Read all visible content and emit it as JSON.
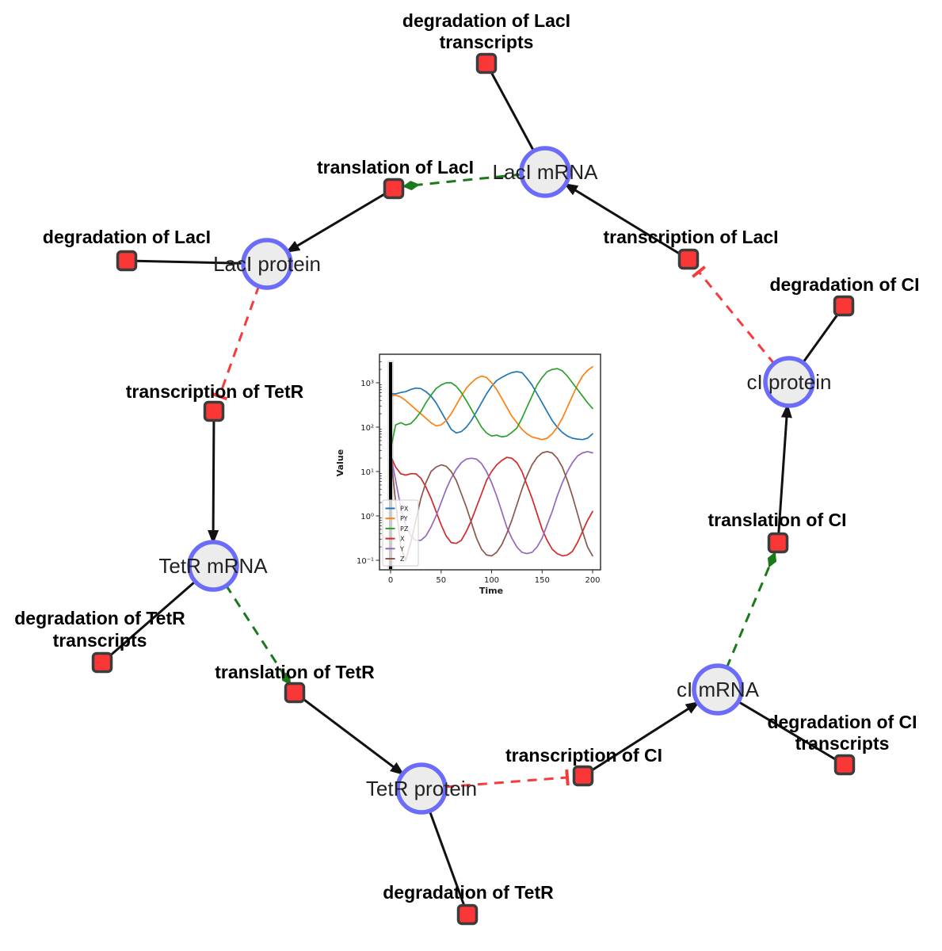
{
  "diagram": {
    "species": [
      {
        "id": "laci-mrna",
        "label": "LacI mRNA"
      },
      {
        "id": "laci-protein",
        "label": "LacI protein"
      },
      {
        "id": "tetr-mrna",
        "label": "TetR mRNA"
      },
      {
        "id": "tetr-protein",
        "label": "TetR protein"
      },
      {
        "id": "ci-mrna",
        "label": "cI mRNA"
      },
      {
        "id": "ci-protein",
        "label": "cI protein"
      }
    ],
    "reactions": [
      {
        "id": "deg-laci-transcripts",
        "label_lines": [
          "degradation of LacI",
          "transcripts"
        ]
      },
      {
        "id": "translation-laci",
        "label": "translation of LacI"
      },
      {
        "id": "deg-laci",
        "label": "degradation of LacI"
      },
      {
        "id": "transcription-laci",
        "label": "transcription of LacI"
      },
      {
        "id": "deg-ci",
        "label": "degradation of CI"
      },
      {
        "id": "transcription-tetr",
        "label": "transcription of TetR"
      },
      {
        "id": "deg-tetr-transcripts",
        "label_lines": [
          "degradation of TetR",
          "transcripts"
        ]
      },
      {
        "id": "translation-tetr",
        "label": "translation of TetR"
      },
      {
        "id": "deg-tetr",
        "label": "degradation of TetR"
      },
      {
        "id": "transcription-ci",
        "label": "transcription of CI"
      },
      {
        "id": "deg-ci-transcripts",
        "label_lines": [
          "degradation of CI",
          "transcripts"
        ]
      },
      {
        "id": "translation-ci",
        "label": "translation of CI"
      }
    ],
    "edges": [
      {
        "source": "LacI mRNA",
        "target": "degradation of LacI transcripts",
        "type": "reactant"
      },
      {
        "source": "transcription of LacI",
        "target": "LacI mRNA",
        "type": "product"
      },
      {
        "source": "LacI mRNA",
        "target": "translation of LacI",
        "type": "modifier"
      },
      {
        "source": "translation of LacI",
        "target": "LacI protein",
        "type": "product"
      },
      {
        "source": "LacI protein",
        "target": "degradation of LacI",
        "type": "reactant"
      },
      {
        "source": "LacI protein",
        "target": "transcription of TetR",
        "type": "inhibition"
      },
      {
        "source": "transcription of TetR",
        "target": "TetR mRNA",
        "type": "product"
      },
      {
        "source": "TetR mRNA",
        "target": "degradation of TetR transcripts",
        "type": "reactant"
      },
      {
        "source": "TetR mRNA",
        "target": "translation of TetR",
        "type": "modifier"
      },
      {
        "source": "translation of TetR",
        "target": "TetR protein",
        "type": "product"
      },
      {
        "source": "TetR protein",
        "target": "degradation of TetR",
        "type": "reactant"
      },
      {
        "source": "TetR protein",
        "target": "transcription of CI",
        "type": "inhibition"
      },
      {
        "source": "transcription of CI",
        "target": "cI mRNA",
        "type": "product"
      },
      {
        "source": "cI mRNA",
        "target": "degradation of CI transcripts",
        "type": "reactant"
      },
      {
        "source": "cI mRNA",
        "target": "translation of CI",
        "type": "modifier"
      },
      {
        "source": "translation of CI",
        "target": "cI protein",
        "type": "product"
      },
      {
        "source": "cI protein",
        "target": "degradation of CI",
        "type": "reactant"
      },
      {
        "source": "cI protein",
        "target": "transcription of LacI",
        "type": "inhibition"
      }
    ],
    "colors": {
      "species_fill": "#ececec",
      "species_stroke": "#6c6cfa",
      "reaction_fill": "#fa3737",
      "reaction_stroke": "#3c3c3c",
      "product_edge": "#111111",
      "modifier_edge": "#1a7a1a",
      "inhibition_edge": "#f53b3b"
    }
  },
  "chart_data": {
    "type": "line",
    "xlabel": "Time",
    "ylabel": "Value",
    "y_scale": "log",
    "xlim": [
      0,
      200
    ],
    "ylim_log10": [
      -1.2,
      3.7
    ],
    "x_ticks": [
      0,
      50,
      100,
      150,
      200
    ],
    "x_tick_labels": [
      "0",
      "50",
      "100",
      "150",
      "200"
    ],
    "y_tick_exponents": [
      -1,
      0,
      1,
      2,
      3
    ],
    "y_tick_labels": [
      "10⁻¹",
      "10⁰",
      "10¹",
      "10²",
      "10³"
    ],
    "legend_position": "lower left",
    "vline_x": 0,
    "x_step": 5,
    "series": [
      {
        "name": "PX",
        "color": "#1f77b4",
        "log10_values": [
          2.75,
          2.75,
          2.78,
          2.8,
          2.85,
          2.88,
          2.87,
          2.8,
          2.7,
          2.55,
          2.35,
          2.15,
          1.95,
          1.87,
          1.9,
          2.0,
          2.15,
          2.35,
          2.55,
          2.75,
          2.92,
          3.05,
          3.12,
          3.18,
          3.23,
          3.25,
          3.23,
          3.1,
          2.95,
          2.75,
          2.55,
          2.35,
          2.15,
          2.0,
          1.88,
          1.8,
          1.75,
          1.73,
          1.72,
          1.75,
          1.85
        ]
      },
      {
        "name": "PY",
        "color": "#ff7f0e",
        "log10_values": [
          2.7,
          2.72,
          2.68,
          2.6,
          2.5,
          2.4,
          2.3,
          2.2,
          2.1,
          2.03,
          2.05,
          2.15,
          2.3,
          2.5,
          2.7,
          2.88,
          3.0,
          3.1,
          3.15,
          3.12,
          3.0,
          2.85,
          2.65,
          2.45,
          2.25,
          2.1,
          1.95,
          1.85,
          1.78,
          1.75,
          1.72,
          1.75,
          1.85,
          2.0,
          2.2,
          2.45,
          2.7,
          2.95,
          3.15,
          3.28,
          3.36
        ]
      },
      {
        "name": "PZ",
        "color": "#2ca02c",
        "log10_values": [
          1.5,
          2.05,
          2.1,
          2.05,
          2.08,
          2.2,
          2.35,
          2.55,
          2.72,
          2.87,
          2.95,
          3.0,
          3.0,
          2.92,
          2.78,
          2.6,
          2.4,
          2.2,
          2.0,
          1.87,
          1.8,
          1.82,
          1.78,
          1.8,
          1.88,
          1.98,
          2.2,
          2.45,
          2.7,
          2.95,
          3.12,
          3.25,
          3.3,
          3.32,
          3.27,
          3.15,
          3.0,
          2.85,
          2.7,
          2.55,
          2.42
        ]
      },
      {
        "name": "X",
        "color": "#d62728",
        "log10_values": [
          1.35,
          1.1,
          0.95,
          0.92,
          0.95,
          0.95,
          0.85,
          0.65,
          0.4,
          0.1,
          -0.2,
          -0.45,
          -0.6,
          -0.62,
          -0.55,
          -0.35,
          -0.1,
          0.2,
          0.5,
          0.8,
          1.0,
          1.15,
          1.25,
          1.32,
          1.3,
          1.2,
          1.0,
          0.7,
          0.4,
          0.05,
          -0.3,
          -0.55,
          -0.75,
          -0.85,
          -0.9,
          -0.88,
          -0.8,
          -0.6,
          -0.35,
          -0.1,
          0.1
        ]
      },
      {
        "name": "Y",
        "color": "#9467bd",
        "log10_values": [
          1.4,
          0.8,
          0.2,
          -0.2,
          -0.45,
          -0.55,
          -0.55,
          -0.45,
          -0.25,
          0.0,
          0.3,
          0.6,
          0.85,
          1.05,
          1.2,
          1.28,
          1.3,
          1.28,
          1.18,
          1.0,
          0.75,
          0.45,
          0.1,
          -0.25,
          -0.5,
          -0.7,
          -0.82,
          -0.85,
          -0.82,
          -0.7,
          -0.5,
          -0.2,
          0.1,
          0.45,
          0.75,
          1.0,
          1.2,
          1.35,
          1.42,
          1.45,
          1.42
        ]
      },
      {
        "name": "Z",
        "color": "#8c564b",
        "log10_values": [
          1.4,
          0.3,
          -0.7,
          -1.0,
          -0.6,
          -0.1,
          0.4,
          0.75,
          1.0,
          1.1,
          1.15,
          1.12,
          1.0,
          0.8,
          0.5,
          0.2,
          -0.15,
          -0.5,
          -0.75,
          -0.88,
          -0.9,
          -0.82,
          -0.65,
          -0.4,
          -0.1,
          0.25,
          0.6,
          0.9,
          1.15,
          1.32,
          1.42,
          1.45,
          1.42,
          1.3,
          1.1,
          0.8,
          0.45,
          0.05,
          -0.35,
          -0.7,
          -0.9
        ]
      }
    ]
  }
}
